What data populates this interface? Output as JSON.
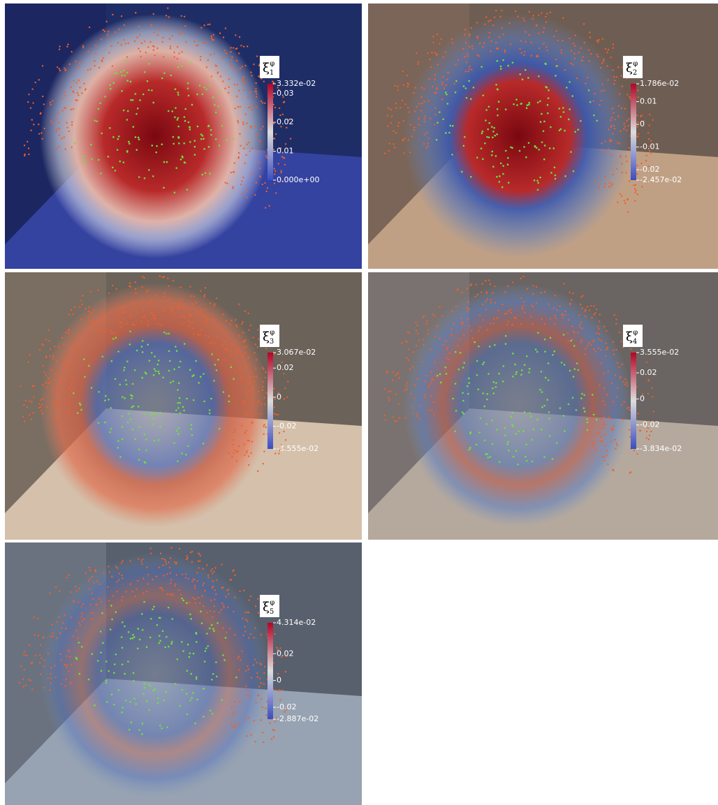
{
  "panels": [
    {
      "label": {
        "symbol": "ξ",
        "sub": "1",
        "sup": "φ"
      },
      "colorbar": {
        "range": [
          0,
          0.03332
        ],
        "ticks": [
          {
            "value": 0.03332,
            "label": "3.332e-02"
          },
          0.03,
          0.02,
          0.01,
          {
            "value": 0,
            "label": "0.000e+00"
          }
        ]
      }
    },
    {
      "label": {
        "symbol": "ξ",
        "sub": "2",
        "sup": "φ"
      },
      "colorbar": {
        "range": [
          -0.02457,
          0.01786
        ],
        "ticks": [
          {
            "value": 0.01786,
            "label": "1.786e-02"
          },
          0.01,
          0,
          -0.01,
          -0.02,
          {
            "value": -0.02457,
            "label": "-2.457e-02"
          }
        ]
      }
    },
    {
      "label": {
        "symbol": "ξ",
        "sub": "3",
        "sup": "φ"
      },
      "colorbar": {
        "range": [
          -0.03555,
          0.03067
        ],
        "ticks": [
          {
            "value": 0.03067,
            "label": "3.067e-02"
          },
          0.02,
          0,
          -0.02,
          {
            "value": -0.03555,
            "label": "-3.555e-02"
          }
        ]
      }
    },
    {
      "label": {
        "symbol": "ξ",
        "sub": "4",
        "sup": "φ"
      },
      "colorbar": {
        "range": [
          -0.03834,
          0.03555
        ],
        "ticks": [
          {
            "value": 0.03555,
            "label": "3.555e-02"
          },
          0.02,
          0,
          -0.02,
          {
            "value": -0.03834,
            "label": "-3.834e-02"
          }
        ]
      }
    },
    {
      "label": {
        "symbol": "ξ",
        "sub": "5",
        "sup": "φ"
      },
      "colorbar": {
        "range": [
          -0.02887,
          0.04314
        ],
        "ticks": [
          {
            "value": 0.04314,
            "label": "4.314e-02"
          },
          0.02,
          0,
          -0.02,
          {
            "value": -0.02887,
            "label": "-2.887e-02"
          }
        ]
      }
    }
  ]
}
